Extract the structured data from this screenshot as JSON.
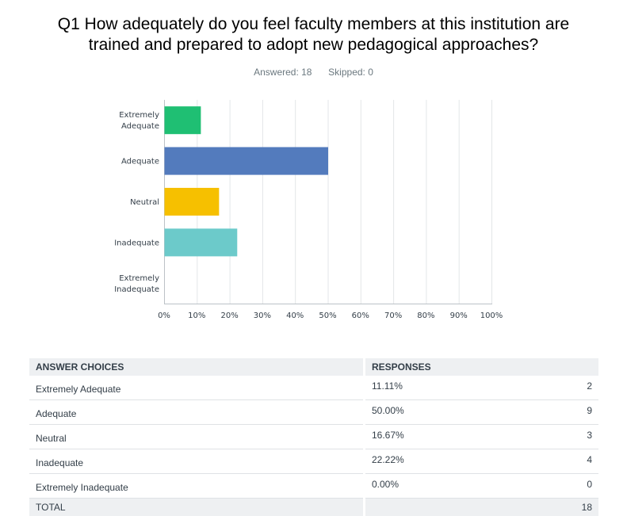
{
  "question": {
    "title_line1": "Q1 How adequately do you feel faculty members at this institution are",
    "title_line2": "trained and prepared to adopt new pedagogical approaches?"
  },
  "stats": {
    "answered": "Answered: 18",
    "skipped": "Skipped: 0"
  },
  "chart_data": {
    "type": "bar",
    "orientation": "horizontal",
    "categories": [
      [
        "Extremely",
        "Adequate"
      ],
      [
        "Adequate"
      ],
      [
        "Neutral"
      ],
      [
        "Inadequate"
      ],
      [
        "Extremely",
        "Inadequate"
      ]
    ],
    "values": [
      11.11,
      50.0,
      16.67,
      22.22,
      0.0
    ],
    "colors": [
      "#1fbf73",
      "#537bbd",
      "#f6c000",
      "#6ccaca",
      "#b66ec8"
    ],
    "xlim": [
      0,
      100
    ],
    "x_ticks": [
      0,
      10,
      20,
      30,
      40,
      50,
      60,
      70,
      80,
      90,
      100
    ],
    "x_tick_labels": [
      "0%",
      "10%",
      "20%",
      "30%",
      "40%",
      "50%",
      "60%",
      "70%",
      "80%",
      "90%",
      "100%"
    ],
    "grid": true,
    "legend": "none"
  },
  "table": {
    "headers": {
      "choice": "ANSWER CHOICES",
      "responses": "RESPONSES"
    },
    "rows": [
      {
        "choice": "Extremely Adequate",
        "percent": "11.11%",
        "count": "2"
      },
      {
        "choice": "Adequate",
        "percent": "50.00%",
        "count": "9"
      },
      {
        "choice": "Neutral",
        "percent": "16.67%",
        "count": "3"
      },
      {
        "choice": "Inadequate",
        "percent": "22.22%",
        "count": "4"
      },
      {
        "choice": "Extremely Inadequate",
        "percent": "0.00%",
        "count": "0"
      }
    ],
    "total_label": "TOTAL",
    "total_count": "18"
  }
}
